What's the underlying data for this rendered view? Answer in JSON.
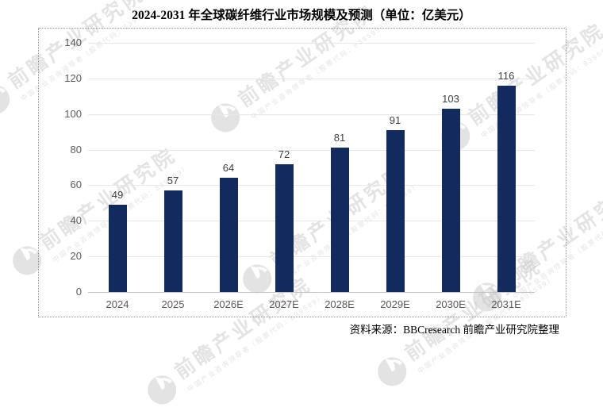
{
  "title": "2024-2031 年全球碳纤维行业市场规模及预测（单位：亿美元）",
  "source_note": "资料来源：BBCresearch  前瞻产业研究院整理",
  "watermark": {
    "brand": "前瞻产业研究院",
    "subtext": "中国产业咨询领导者（股票代码：839599）"
  },
  "colors": {
    "bar": "#132a5e",
    "gridline": "#e8e8e8",
    "axis_line": "#c4c4c4",
    "tick_label": "#595959",
    "value_label": "#3f3f3f",
    "watermark": "#c9c9c9"
  },
  "chart_data": {
    "type": "bar",
    "title": "2024-2031 年全球碳纤维行业市场规模及预测（单位：亿美元）",
    "categories": [
      "2024",
      "2025",
      "2026E",
      "2027E",
      "2028E",
      "2029E",
      "2030E",
      "2031E"
    ],
    "values": [
      49,
      57,
      64,
      72,
      81,
      91,
      103,
      116
    ],
    "xlabel": "",
    "ylabel": "",
    "unit": "亿美元",
    "ylim": [
      0,
      140
    ],
    "y_ticks": [
      0,
      20,
      40,
      60,
      80,
      100,
      120,
      140
    ],
    "grid": true,
    "legend": false,
    "data_labels": true
  }
}
